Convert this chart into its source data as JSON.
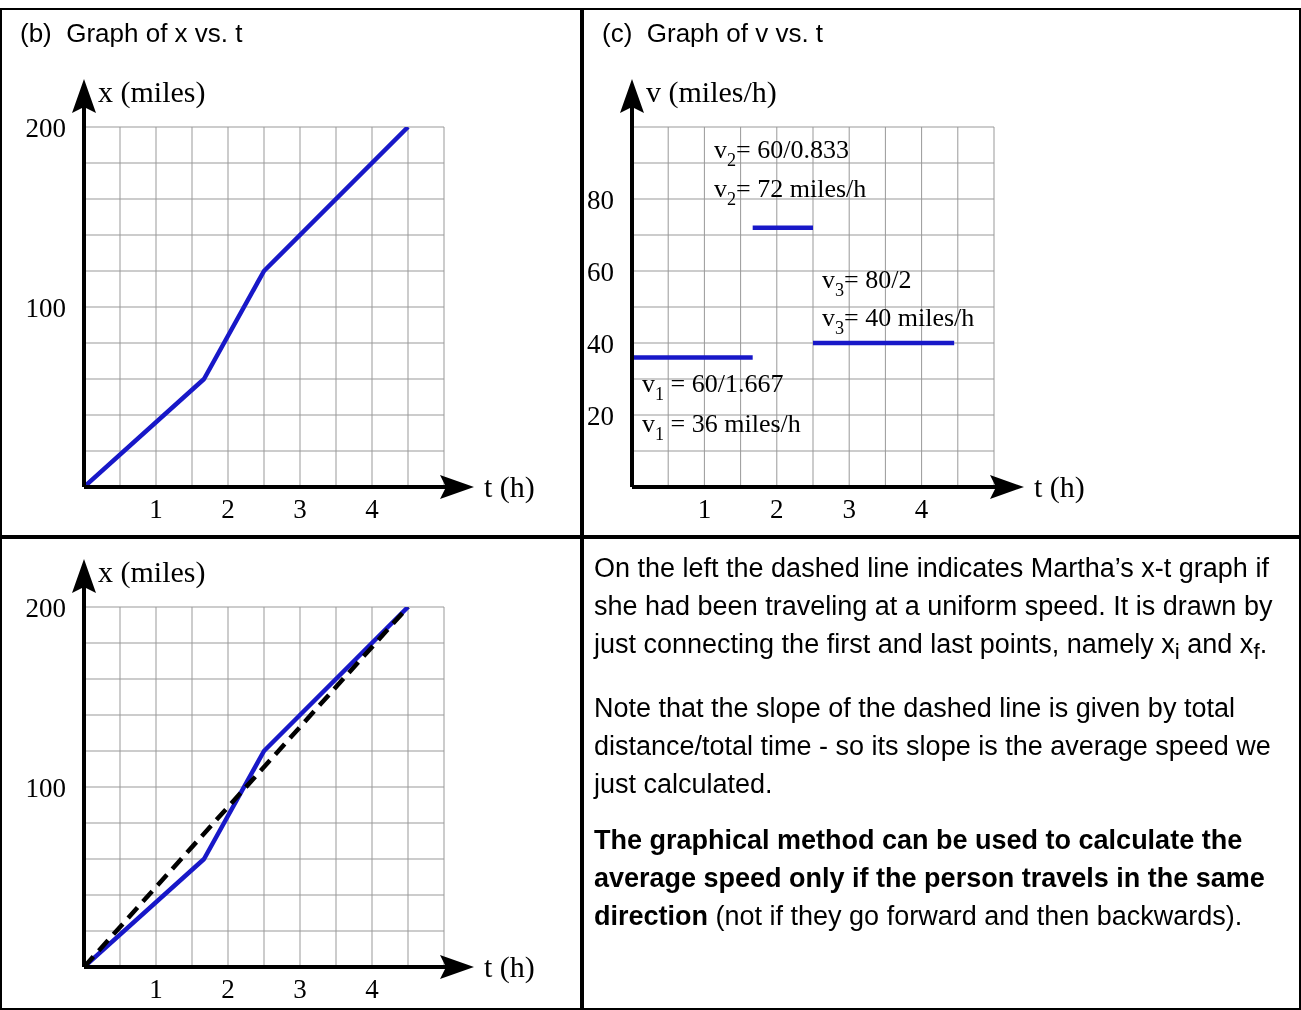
{
  "chart_data": [
    {
      "type": "line",
      "title": "(b)  Graph of x vs. t",
      "xlabel": "t (h)",
      "ylabel": "x (miles)",
      "xlim": [
        0,
        5
      ],
      "xticks": [
        {
          "value": 0.5,
          "label": null
        },
        1,
        {
          "value": 1.5,
          "label": null
        },
        2,
        {
          "value": 2.5,
          "label": null
        },
        3,
        {
          "value": 3.5,
          "label": null
        },
        4,
        {
          "value": 4.5,
          "label": null
        },
        {
          "value": 5,
          "label": null
        }
      ],
      "ylim": [
        0,
        200
      ],
      "yticks": [
        {
          "value": 20,
          "label": null
        },
        {
          "value": 40,
          "label": null
        },
        {
          "value": 60,
          "label": null
        },
        {
          "value": 80,
          "label": null
        },
        100,
        {
          "value": 120,
          "label": null
        },
        {
          "value": 140,
          "label": null
        },
        {
          "value": 160,
          "label": null
        },
        {
          "value": 180,
          "label": null
        },
        200
      ],
      "grid": true,
      "series": [
        {
          "color": "#1818c8",
          "x": [
            0,
            1.667,
            2.5,
            4.5
          ],
          "values": [
            0,
            60,
            120,
            200
          ]
        }
      ]
    },
    {
      "type": "line",
      "title": "(c)  Graph of v vs. t",
      "xlabel": "t (h)",
      "ylabel": "v (miles/h)",
      "xlim": [
        0,
        5
      ],
      "xticks": [
        {
          "value": 0.5,
          "label": null
        },
        1,
        {
          "value": 1.5,
          "label": null
        },
        2,
        {
          "value": 2.5,
          "label": null
        },
        3,
        {
          "value": 3.5,
          "label": null
        },
        4,
        {
          "value": 4.5,
          "label": null
        },
        {
          "value": 5,
          "label": null
        }
      ],
      "ylim": [
        0,
        100
      ],
      "yticks": [
        {
          "value": 10,
          "label": null
        },
        20,
        {
          "value": 30,
          "label": null
        },
        40,
        {
          "value": 50,
          "label": null
        },
        60,
        {
          "value": 70,
          "label": null
        },
        80,
        {
          "value": 90,
          "label": null
        },
        {
          "value": 100,
          "label": null
        }
      ],
      "grid": true,
      "series": [
        {
          "color": "#1818c8",
          "x": [
            0,
            1.667
          ],
          "values": [
            36,
            36
          ]
        },
        {
          "color": "#1818c8",
          "x": [
            1.667,
            2.5
          ],
          "values": [
            72,
            72
          ]
        },
        {
          "color": "#1818c8",
          "x": [
            2.5,
            4.45
          ],
          "values": [
            40,
            40
          ]
        }
      ],
      "annotations": [
        "v$_{2}$= 60/0.833",
        "v$_{2}$= 72 miles/h",
        "v$_{3}$= 80/2",
        "v$_{3}$= 40 miles/h",
        "v$_{1}$ = 60/1.667",
        "v$_{1}$ = 36 miles/h"
      ]
    },
    {
      "type": "line",
      "xlabel": "t (h)",
      "ylabel": "x (miles)",
      "xlim": [
        0,
        5
      ],
      "xticks": [
        {
          "value": 0.5,
          "label": null
        },
        1,
        {
          "value": 1.5,
          "label": null
        },
        2,
        {
          "value": 2.5,
          "label": null
        },
        3,
        {
          "value": 3.5,
          "label": null
        },
        4,
        {
          "value": 4.5,
          "label": null
        },
        {
          "value": 5,
          "label": null
        }
      ],
      "ylim": [
        0,
        200
      ],
      "yticks": [
        {
          "value": 20,
          "label": null
        },
        {
          "value": 40,
          "label": null
        },
        {
          "value": 60,
          "label": null
        },
        {
          "value": 80,
          "label": null
        },
        100,
        {
          "value": 120,
          "label": null
        },
        {
          "value": 140,
          "label": null
        },
        {
          "value": 160,
          "label": null
        },
        {
          "value": 180,
          "label": null
        },
        200
      ],
      "grid": true,
      "series": [
        {
          "color": "#1818c8",
          "x": [
            0,
            1.667,
            2.5,
            4.5
          ],
          "values": [
            0,
            60,
            120,
            200
          ]
        },
        {
          "color": "#000000",
          "line_style": "dashed",
          "x": [
            0,
            4.5
          ],
          "values": [
            0,
            200
          ]
        }
      ]
    },
    {
      "type": "other",
      "annotations": [
        "On the left the dashed line indicates Martha’s x-t graph if she had been traveling at a uniform speed.  It is drawn by just connecting the first and last points, namely x$_{i}$ and x$_{f}$.",
        "Note that the slope of the dashed line is given by total distance/total time  - so its slope is the average speed we just calculated.",
        "The graphical method can be used to calculate the average speed only if the person travels in the same direction",
        "(not if they go forward and then backwards)."
      ]
    }
  ]
}
